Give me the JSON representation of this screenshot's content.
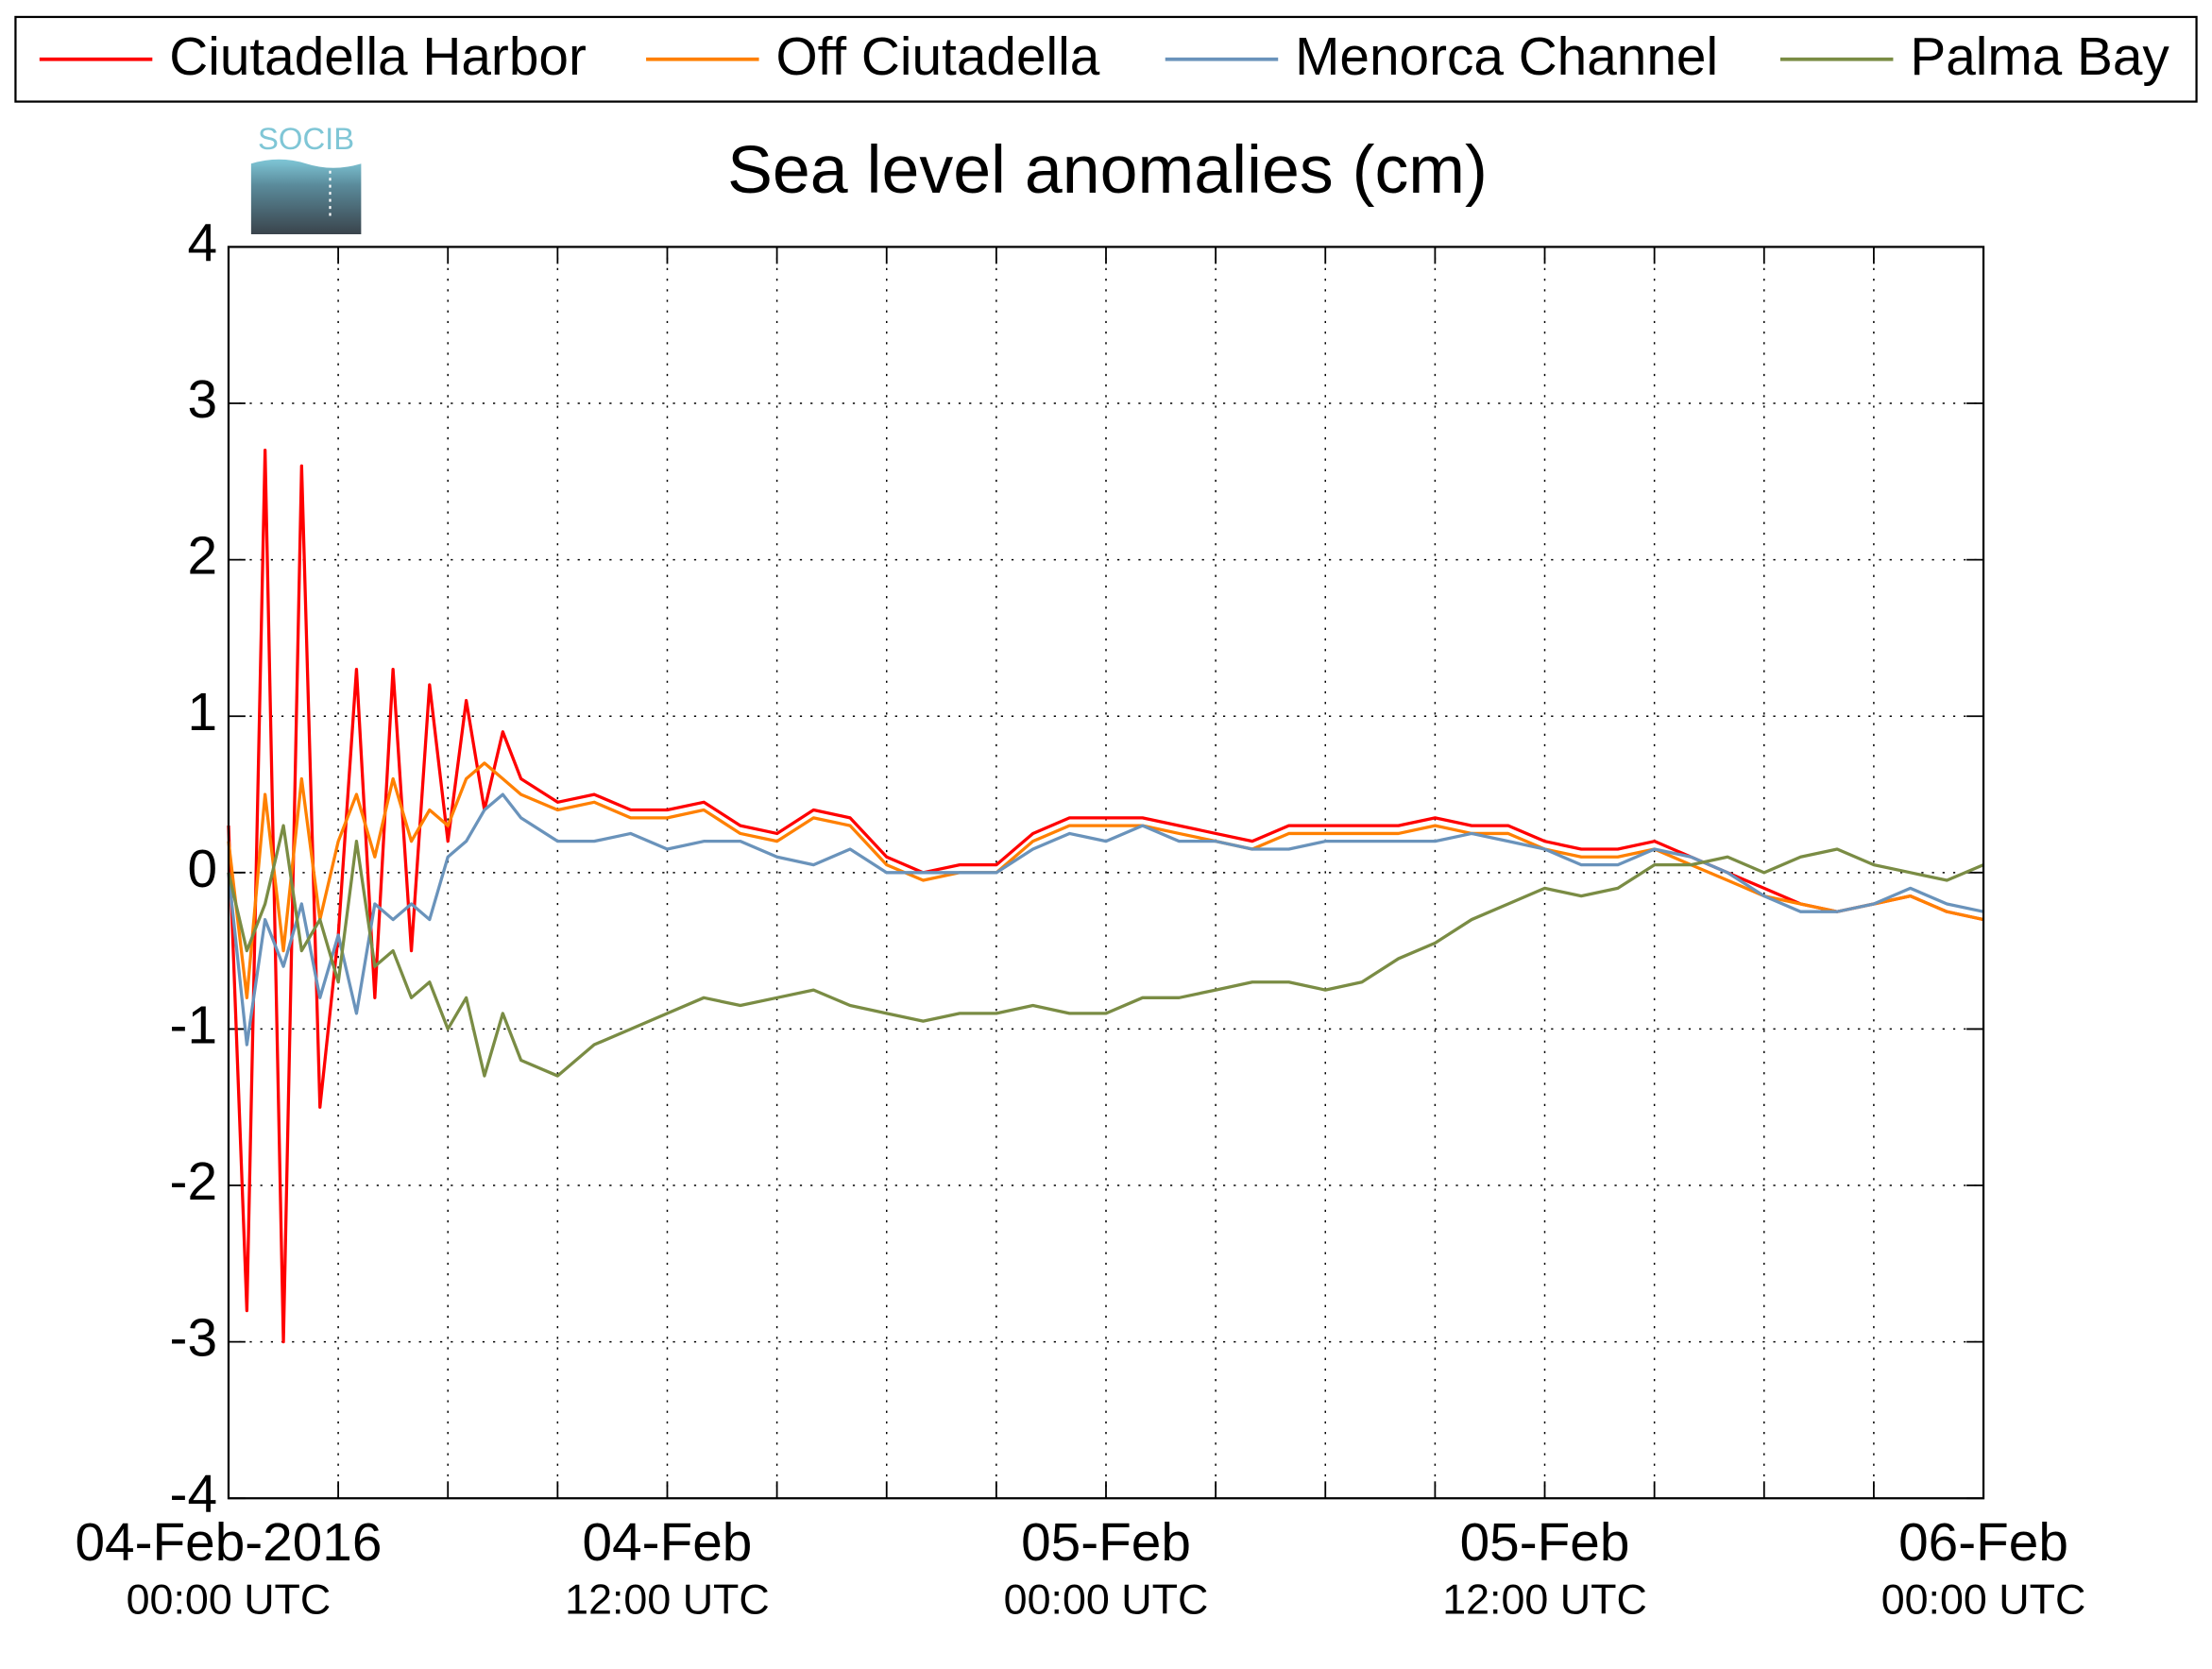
{
  "chart_data": {
    "type": "line",
    "title": "Sea level anomalies (cm)",
    "logo_text": "SOCIB",
    "x": [
      "2016-02-04T00:00",
      "2016-02-04T00:30",
      "2016-02-04T01:00",
      "2016-02-04T01:30",
      "2016-02-04T02:00",
      "2016-02-04T02:30",
      "2016-02-04T03:00",
      "2016-02-04T03:30",
      "2016-02-04T04:00",
      "2016-02-04T04:30",
      "2016-02-04T05:00",
      "2016-02-04T05:30",
      "2016-02-04T06:00",
      "2016-02-04T06:30",
      "2016-02-04T07:00",
      "2016-02-04T07:30",
      "2016-02-04T08:00",
      "2016-02-04T09:00",
      "2016-02-04T10:00",
      "2016-02-04T11:00",
      "2016-02-04T12:00",
      "2016-02-04T13:00",
      "2016-02-04T14:00",
      "2016-02-04T15:00",
      "2016-02-04T16:00",
      "2016-02-04T17:00",
      "2016-02-04T18:00",
      "2016-02-04T19:00",
      "2016-02-04T20:00",
      "2016-02-04T21:00",
      "2016-02-04T22:00",
      "2016-02-04T23:00",
      "2016-02-05T00:00",
      "2016-02-05T01:00",
      "2016-02-05T02:00",
      "2016-02-05T03:00",
      "2016-02-05T04:00",
      "2016-02-05T05:00",
      "2016-02-05T06:00",
      "2016-02-05T07:00",
      "2016-02-05T08:00",
      "2016-02-05T09:00",
      "2016-02-05T10:00",
      "2016-02-05T11:00",
      "2016-02-05T12:00",
      "2016-02-05T13:00",
      "2016-02-05T14:00",
      "2016-02-05T15:00",
      "2016-02-05T16:00",
      "2016-02-05T17:00",
      "2016-02-05T18:00",
      "2016-02-05T19:00",
      "2016-02-05T20:00",
      "2016-02-05T21:00",
      "2016-02-05T22:00",
      "2016-02-05T23:00",
      "2016-02-06T00:00"
    ],
    "series": [
      {
        "name": "Ciutadella Harbor",
        "color": "#ff0000",
        "values": [
          0.3,
          -2.8,
          2.7,
          -3.0,
          2.6,
          -1.5,
          -0.4,
          1.3,
          -0.8,
          1.3,
          -0.5,
          1.2,
          0.2,
          1.1,
          0.4,
          0.9,
          0.6,
          0.45,
          0.5,
          0.4,
          0.4,
          0.45,
          0.3,
          0.25,
          0.4,
          0.35,
          0.1,
          0.0,
          0.05,
          0.05,
          0.25,
          0.35,
          0.35,
          0.35,
          0.3,
          0.25,
          0.2,
          0.3,
          0.3,
          0.3,
          0.3,
          0.35,
          0.3,
          0.3,
          0.2,
          0.15,
          0.15,
          0.2,
          0.1,
          0.0,
          -0.1,
          -0.2,
          -0.25,
          -0.2,
          -0.15,
          -0.25,
          -0.3
        ]
      },
      {
        "name": "Off Ciutadella",
        "color": "#ff8000",
        "values": [
          0.2,
          -0.8,
          0.5,
          -0.5,
          0.6,
          -0.3,
          0.2,
          0.5,
          0.1,
          0.6,
          0.2,
          0.4,
          0.3,
          0.6,
          0.7,
          0.6,
          0.5,
          0.4,
          0.45,
          0.35,
          0.35,
          0.4,
          0.25,
          0.2,
          0.35,
          0.3,
          0.05,
          -0.05,
          0.0,
          0.0,
          0.2,
          0.3,
          0.3,
          0.3,
          0.25,
          0.2,
          0.15,
          0.25,
          0.25,
          0.25,
          0.25,
          0.3,
          0.25,
          0.25,
          0.15,
          0.1,
          0.1,
          0.15,
          0.05,
          -0.05,
          -0.15,
          -0.2,
          -0.25,
          -0.2,
          -0.15,
          -0.25,
          -0.3
        ]
      },
      {
        "name": "Menorca Channel",
        "color": "#6a93bb",
        "values": [
          0.0,
          -1.1,
          -0.3,
          -0.6,
          -0.2,
          -0.8,
          -0.4,
          -0.9,
          -0.2,
          -0.3,
          -0.2,
          -0.3,
          0.1,
          0.2,
          0.4,
          0.5,
          0.35,
          0.2,
          0.2,
          0.25,
          0.15,
          0.2,
          0.2,
          0.1,
          0.05,
          0.15,
          0.0,
          0.0,
          0.0,
          0.0,
          0.15,
          0.25,
          0.2,
          0.3,
          0.2,
          0.2,
          0.15,
          0.15,
          0.2,
          0.2,
          0.2,
          0.2,
          0.25,
          0.2,
          0.15,
          0.05,
          0.05,
          0.15,
          0.1,
          0.0,
          -0.15,
          -0.25,
          -0.25,
          -0.2,
          -0.1,
          -0.2,
          -0.25
        ]
      },
      {
        "name": "Palma Bay",
        "color": "#7a8c44",
        "values": [
          0.0,
          -0.5,
          -0.2,
          0.3,
          -0.5,
          -0.3,
          -0.7,
          0.2,
          -0.6,
          -0.5,
          -0.8,
          -0.7,
          -1.0,
          -0.8,
          -1.3,
          -0.9,
          -1.2,
          -1.3,
          -1.1,
          -1.0,
          -0.9,
          -0.8,
          -0.85,
          -0.8,
          -0.75,
          -0.85,
          -0.9,
          -0.95,
          -0.9,
          -0.9,
          -0.85,
          -0.9,
          -0.9,
          -0.8,
          -0.8,
          -0.75,
          -0.7,
          -0.7,
          -0.75,
          -0.7,
          -0.55,
          -0.45,
          -0.3,
          -0.2,
          -0.1,
          -0.15,
          -0.1,
          0.05,
          0.05,
          0.1,
          0.0,
          0.1,
          0.15,
          0.05,
          0.0,
          -0.05,
          0.05
        ]
      }
    ],
    "xlim": [
      "2016-02-04T00:00",
      "2016-02-06T00:00"
    ],
    "xticks": [
      {
        "value": "2016-02-04T00:00",
        "label": [
          "04-Feb-2016",
          "00:00 UTC"
        ]
      },
      {
        "value": "2016-02-04T03:00",
        "label": null
      },
      {
        "value": "2016-02-04T06:00",
        "label": null
      },
      {
        "value": "2016-02-04T09:00",
        "label": null
      },
      {
        "value": "2016-02-04T12:00",
        "label": [
          "04-Feb",
          "12:00 UTC"
        ]
      },
      {
        "value": "2016-02-04T15:00",
        "label": null
      },
      {
        "value": "2016-02-04T18:00",
        "label": null
      },
      {
        "value": "2016-02-04T21:00",
        "label": null
      },
      {
        "value": "2016-02-05T00:00",
        "label": [
          "05-Feb",
          "00:00 UTC"
        ]
      },
      {
        "value": "2016-02-05T03:00",
        "label": null
      },
      {
        "value": "2016-02-05T06:00",
        "label": null
      },
      {
        "value": "2016-02-05T09:00",
        "label": null
      },
      {
        "value": "2016-02-05T12:00",
        "label": [
          "05-Feb",
          "12:00 UTC"
        ]
      },
      {
        "value": "2016-02-05T15:00",
        "label": null
      },
      {
        "value": "2016-02-05T18:00",
        "label": null
      },
      {
        "value": "2016-02-05T21:00",
        "label": null
      },
      {
        "value": "2016-02-06T00:00",
        "label": [
          "06-Feb",
          "00:00 UTC"
        ]
      }
    ],
    "ylim": [
      -4,
      4
    ],
    "yticks": [
      -4,
      -3,
      -2,
      -1,
      0,
      1,
      2,
      3,
      4
    ],
    "grid": true,
    "legend": "top"
  }
}
